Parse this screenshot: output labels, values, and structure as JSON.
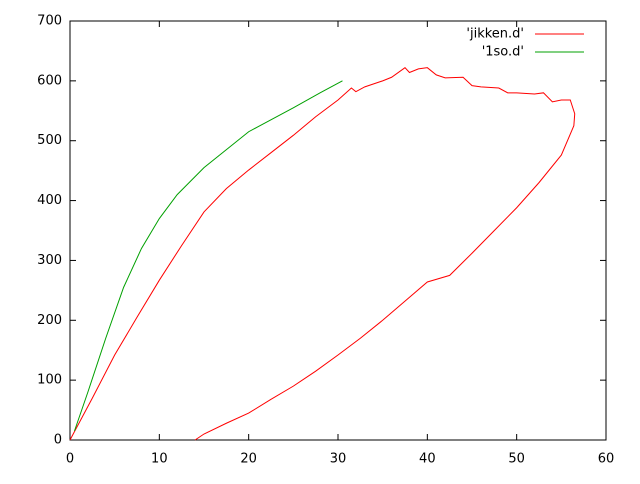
{
  "chart_data": {
    "type": "line",
    "xlim": [
      0,
      60
    ],
    "xticks": [
      0,
      10,
      20,
      30,
      40,
      50,
      60
    ],
    "ylim": [
      0,
      700
    ],
    "yticks": [
      0,
      100,
      200,
      300,
      400,
      500,
      600,
      700
    ],
    "grid": false,
    "legend": "top-right",
    "series": [
      {
        "name": "'jikken.d'",
        "color": "#ff0000",
        "x": [
          0,
          2.5,
          5,
          7.5,
          10,
          12.5,
          15,
          17.5,
          20,
          22.5,
          25,
          27.5,
          30,
          31.5,
          32,
          33,
          35,
          36,
          37.5,
          38,
          39,
          40,
          41,
          42,
          44,
          45,
          46,
          48,
          49,
          50,
          52,
          53,
          54,
          55,
          56,
          56.5,
          56.4,
          55,
          52.5,
          50,
          47.5,
          45,
          42.5,
          40,
          37.5,
          35,
          32.5,
          30,
          27.5,
          25,
          22.5,
          20,
          17.5,
          15,
          14
        ],
        "values": [
          0,
          70,
          142,
          205,
          267,
          325,
          381,
          420,
          451,
          480,
          509,
          540,
          568,
          588,
          582,
          590,
          600,
          606,
          622,
          614,
          620,
          622,
          610,
          605,
          606,
          592,
          590,
          588,
          580,
          580,
          578,
          580,
          565,
          568,
          568,
          545,
          525,
          476,
          430,
          388,
          350,
          312,
          275,
          264,
          232,
          200,
          170,
          142,
          115,
          90,
          68,
          45,
          28,
          10,
          0
        ]
      },
      {
        "name": "'1so.d'",
        "color": "#00a000",
        "x": [
          0.5,
          2,
          4,
          6,
          8,
          10,
          12,
          15,
          20,
          25,
          28,
          30.5
        ],
        "values": [
          15,
          80,
          170,
          255,
          320,
          370,
          410,
          455,
          515,
          555,
          580,
          600
        ]
      }
    ]
  }
}
